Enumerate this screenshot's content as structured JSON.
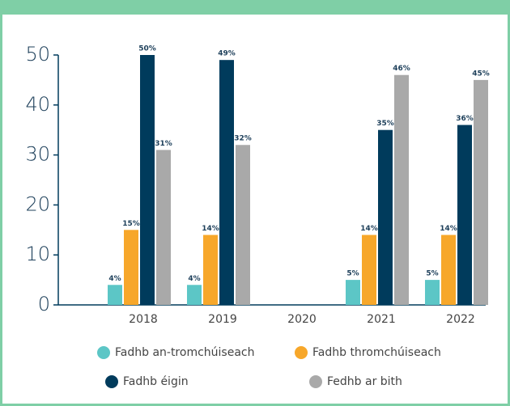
{
  "chart_data": {
    "type": "bar",
    "categories": [
      "2018",
      "2019",
      "2020",
      "2021",
      "2022"
    ],
    "series": [
      {
        "name": "Fadhb an-tromchúiseach",
        "color": "#5cc6c6",
        "values": [
          4,
          4,
          null,
          5,
          5
        ],
        "value_labels": [
          "4%",
          "4%",
          null,
          "5%",
          "5%"
        ]
      },
      {
        "name": "Fadhb thromchúiseach",
        "color": "#f7a72a",
        "values": [
          15,
          14,
          null,
          14,
          14
        ],
        "value_labels": [
          "15%",
          "14%",
          null,
          "14%",
          "14%"
        ]
      },
      {
        "name": "Fadhb éigin",
        "color": "#003b5c",
        "values": [
          50,
          49,
          null,
          35,
          36
        ],
        "value_labels": [
          "50%",
          "49%",
          null,
          "35%",
          "36%"
        ]
      },
      {
        "name": "Fedhb ar bith",
        "color": "#a9a9a9",
        "values": [
          31,
          32,
          null,
          46,
          45
        ],
        "value_labels": [
          "31%",
          "32%",
          null,
          "46%",
          "45%"
        ]
      }
    ],
    "ylim": [
      0,
      50
    ],
    "yticks": [
      0,
      10,
      20,
      30,
      40,
      50
    ],
    "grid": false
  }
}
